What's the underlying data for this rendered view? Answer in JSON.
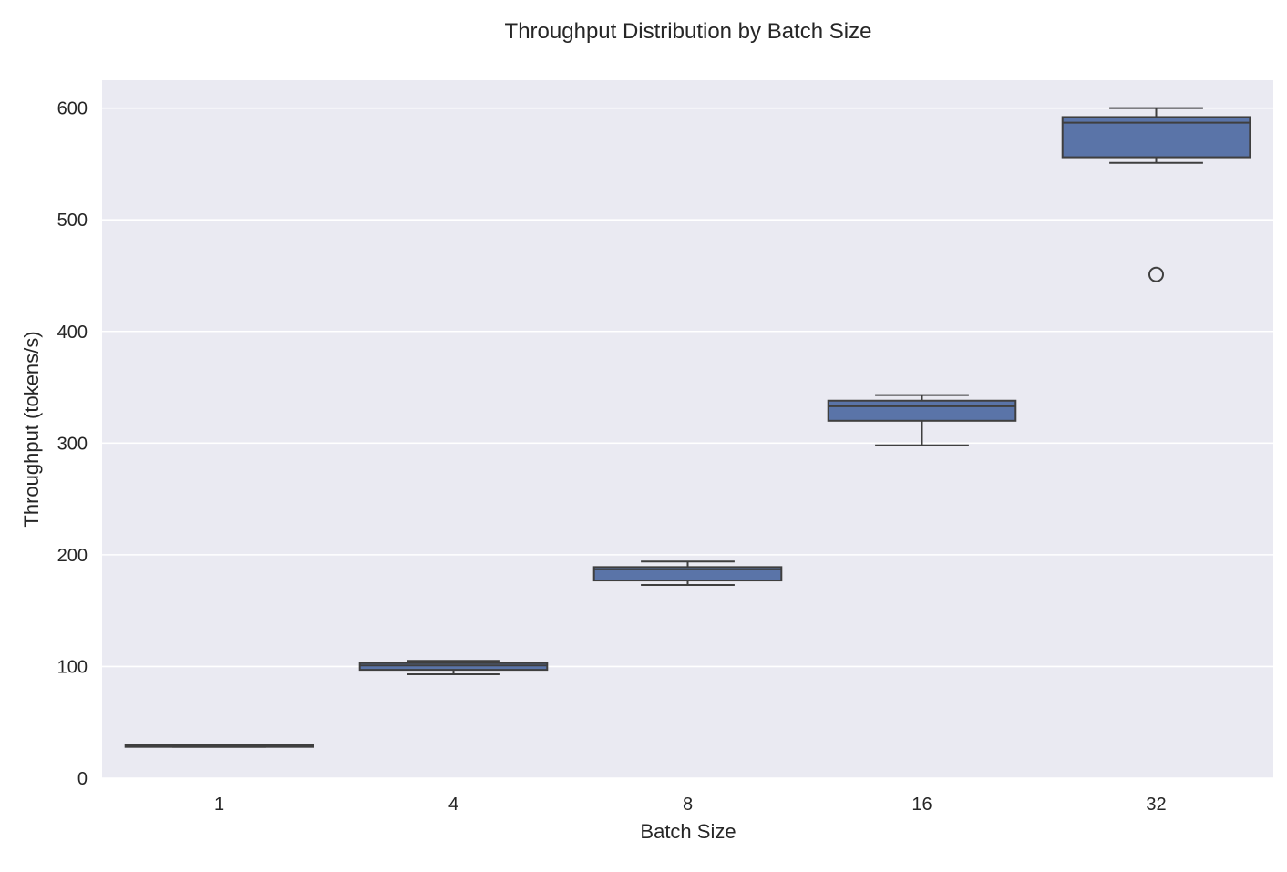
{
  "chart_data": {
    "type": "box",
    "title": "Throughput Distribution by Batch Size",
    "xlabel": "Batch Size",
    "ylabel": "Throughput (tokens/s)",
    "categories": [
      "1",
      "4",
      "8",
      "16",
      "32"
    ],
    "ylim": [
      0,
      625
    ],
    "yticks": [
      "0",
      "100",
      "200",
      "300",
      "400",
      "500",
      "600"
    ],
    "grid": true,
    "legend": "none",
    "box_color": "#5a74a8",
    "line_color": "#3f3f3f",
    "background_color": "#eaeaf2",
    "boxes": [
      {
        "category": "1",
        "whisker_low": 28,
        "q1": 28,
        "median": 29,
        "q3": 30,
        "whisker_high": 30,
        "outliers": []
      },
      {
        "category": "4",
        "whisker_low": 93,
        "q1": 97,
        "median": 101,
        "q3": 103,
        "whisker_high": 105,
        "outliers": []
      },
      {
        "category": "8",
        "whisker_low": 173,
        "q1": 177,
        "median": 187,
        "q3": 189,
        "whisker_high": 194,
        "outliers": []
      },
      {
        "category": "16",
        "whisker_low": 298,
        "q1": 320,
        "median": 333,
        "q3": 338,
        "whisker_high": 343,
        "outliers": []
      },
      {
        "category": "32",
        "whisker_low": 551,
        "q1": 556,
        "median": 587,
        "q3": 592,
        "whisker_high": 600,
        "outliers": [
          451
        ]
      }
    ]
  }
}
